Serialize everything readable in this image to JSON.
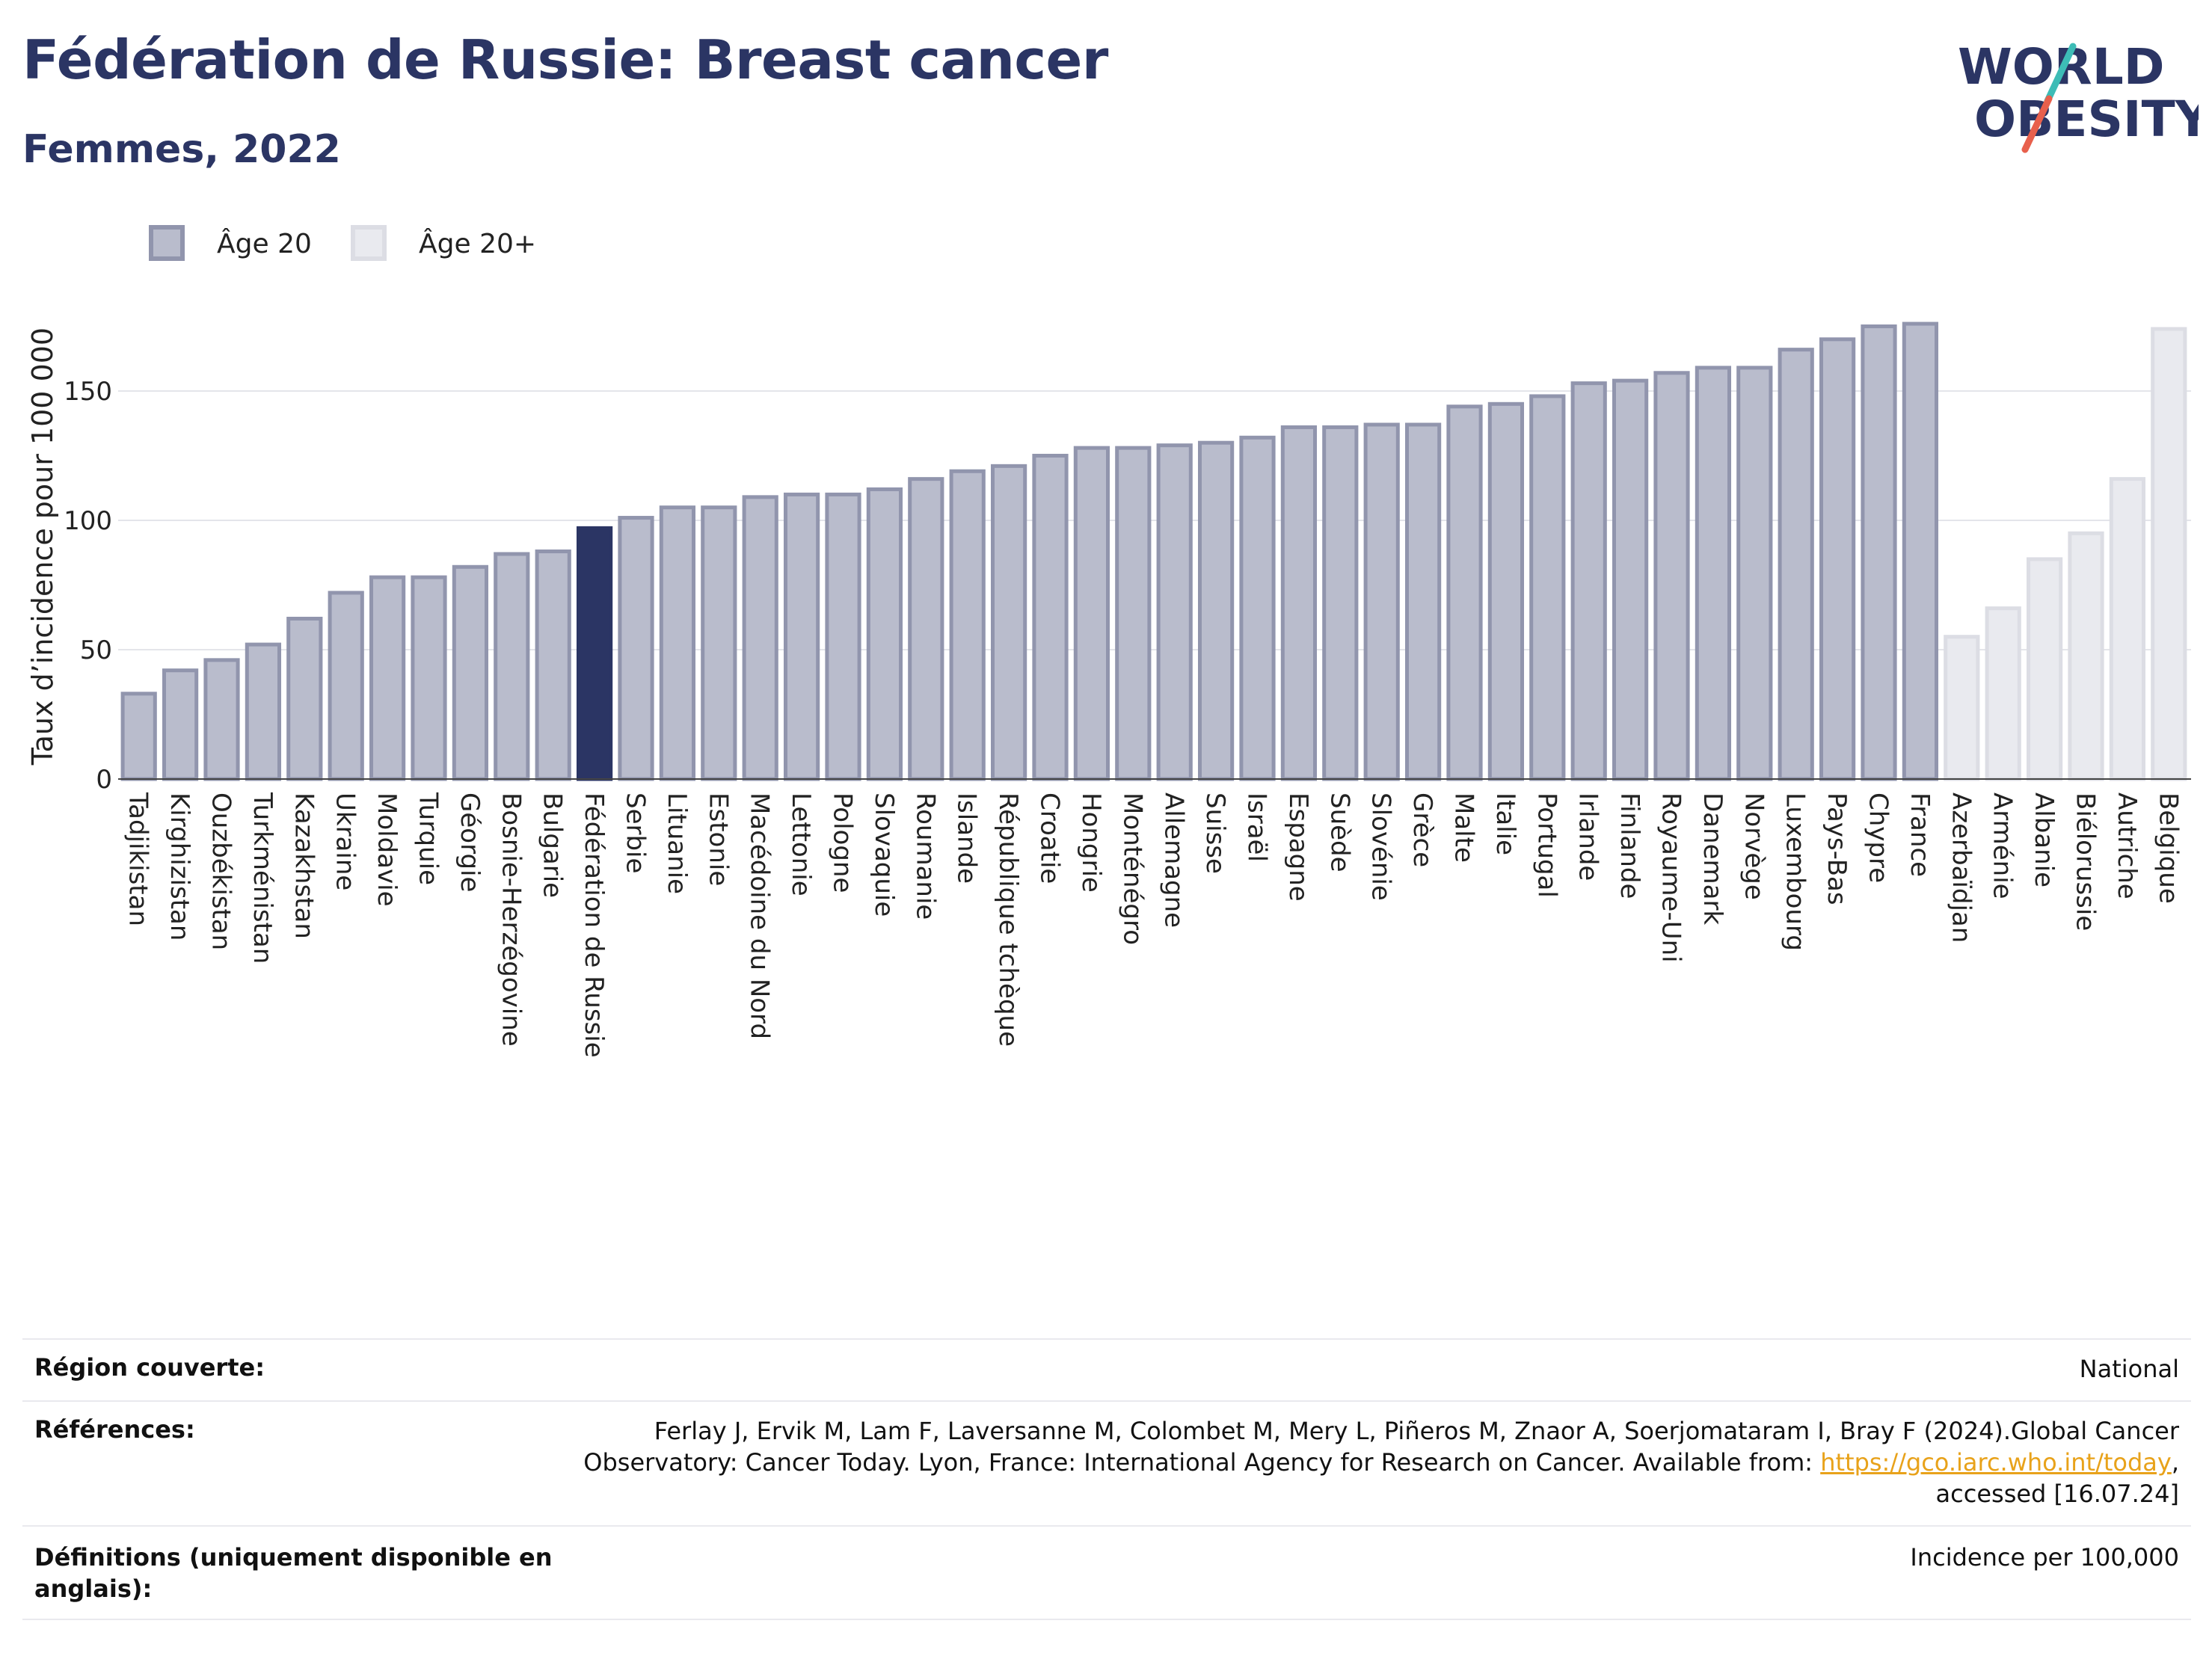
{
  "header": {
    "title": "Fédération de Russie: Breast cancer",
    "subtitle": "Femmes, 2022",
    "logo_line1": "WORLD",
    "logo_line2": "OBESITY"
  },
  "colors": {
    "age20": "#b9bccc",
    "age20_stroke": "#9195ad",
    "age20plus": "#e9eaef",
    "age20plus_stroke": "#dcdde4",
    "highlight": "#2b3564",
    "text": "#2b3564",
    "logo_accent_teal": "#3dbcb6",
    "logo_accent_red": "#e8604c"
  },
  "chart_data": {
    "type": "bar",
    "ylabel": "Taux d’incidence pour 100 000",
    "xlabel": "",
    "ylim": [
      0,
      190
    ],
    "yticks": [
      0,
      50,
      100,
      150
    ],
    "grid": true,
    "legend_position": "top-left",
    "legend": [
      {
        "name": "Âge 20",
        "key": "age20"
      },
      {
        "name": "Âge 20+",
        "key": "age20plus"
      }
    ],
    "highlight": "Fédération de Russie",
    "categories": [
      "Tadjikistan",
      "Kirghizistan",
      "Ouzbékistan",
      "Turkménistan",
      "Kazakhstan",
      "Ukraine",
      "Moldavie",
      "Turquie",
      "Géorgie",
      "Bosnie-Herzégovine",
      "Bulgarie",
      "Fédération de Russie",
      "Serbie",
      "Lituanie",
      "Estonie",
      "Macédoine du Nord",
      "Lettonie",
      "Pologne",
      "Slovaquie",
      "Roumanie",
      "Islande",
      "République tchèque",
      "Croatie",
      "Hongrie",
      "Monténégro",
      "Allemagne",
      "Suisse",
      "Israël",
      "Espagne",
      "Suède",
      "Slovénie",
      "Grèce",
      "Malte",
      "Italie",
      "Portugal",
      "Irlande",
      "Finlande",
      "Royaume-Uni",
      "Danemark",
      "Norvège",
      "Luxembourg",
      "Pays-Bas",
      "Chypre",
      "France",
      "Azerbaïdjan",
      "Arménie",
      "Albanie",
      "Biélorussie",
      "Autriche",
      "Belgique"
    ],
    "values": [
      33,
      42,
      46,
      52,
      62,
      72,
      78,
      78,
      82,
      87,
      88,
      97,
      101,
      105,
      105,
      109,
      110,
      110,
      112,
      116,
      119,
      121,
      125,
      128,
      128,
      129,
      130,
      132,
      136,
      136,
      137,
      137,
      144,
      145,
      148,
      153,
      154,
      157,
      159,
      159,
      166,
      170,
      175,
      176,
      55,
      66,
      85,
      95,
      116,
      174
    ],
    "series_group": [
      "age20",
      "age20",
      "age20",
      "age20",
      "age20",
      "age20",
      "age20",
      "age20",
      "age20",
      "age20",
      "age20",
      "age20",
      "age20",
      "age20",
      "age20",
      "age20",
      "age20",
      "age20",
      "age20",
      "age20",
      "age20",
      "age20",
      "age20",
      "age20",
      "age20",
      "age20",
      "age20",
      "age20",
      "age20",
      "age20",
      "age20",
      "age20",
      "age20",
      "age20",
      "age20",
      "age20",
      "age20",
      "age20",
      "age20",
      "age20",
      "age20",
      "age20",
      "age20",
      "age20",
      "age20plus",
      "age20plus",
      "age20plus",
      "age20plus",
      "age20plus",
      "age20plus"
    ]
  },
  "footer": {
    "region_label": "Région couverte:",
    "region_value": "National",
    "refs_label": "Références:",
    "refs_line1": "Ferlay J, Ervik M, Lam F, Laversanne M, Colombet M, Mery L, Piñeros M, Znaor A, Soerjomataram I, Bray F (2024).Global Cancer",
    "refs_line2_pre": "Observatory: Cancer Today. Lyon, France: International Agency for Research on Cancer. Available from: ",
    "refs_link": "https://gco.iarc.who.int/today",
    "refs_line2_post": ",",
    "refs_line3": "accessed [16.07.24]",
    "defs_label_1": "Définitions (uniquement disponible en",
    "defs_label_2": "anglais):",
    "defs_value": "Incidence per 100,000"
  }
}
